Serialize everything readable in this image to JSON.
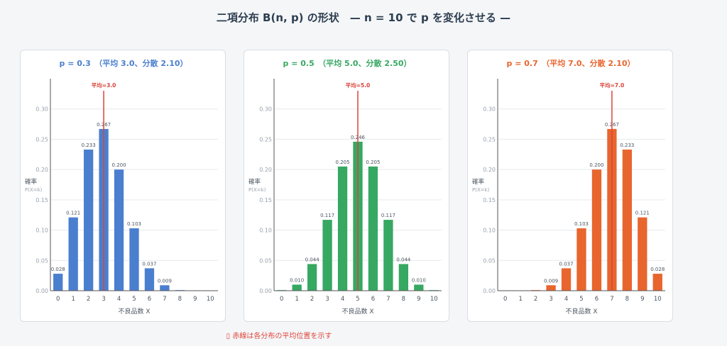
{
  "title": "二項分布 B(n, p) の形状　— n = 10 で p を変化させる —",
  "footnote": "▯ 赤線は各分布の平均位置を示す",
  "chart_data": [
    {
      "type": "bar",
      "title": "p = 0.3　（平均 3.0、分散 2.10）",
      "color": "#4a7fcf",
      "xlabel": "不良品数 X",
      "ylabel": "確率",
      "ylabel_sub": "P(X=k)",
      "categories": [
        "0",
        "1",
        "2",
        "3",
        "4",
        "5",
        "6",
        "7",
        "8",
        "9",
        "10"
      ],
      "values": [
        0.028,
        0.121,
        0.233,
        0.267,
        0.2,
        0.103,
        0.037,
        0.009,
        0.001,
        0.0,
        0.0
      ],
      "labels": [
        "0.028",
        "0.121",
        "0.233",
        "0.267",
        "0.200",
        "0.103",
        "0.037",
        "0.009",
        "",
        "",
        ""
      ],
      "yticks": [
        "0.00",
        "0.05",
        "0.10",
        "0.15",
        "0.20",
        "0.25",
        "0.30"
      ],
      "ylim": [
        0,
        0.35
      ],
      "mean": 3.0,
      "mean_label": "平均=3.0",
      "grid": true
    },
    {
      "type": "bar",
      "title": "p = 0.5　（平均 5.0、分散 2.50）",
      "color": "#36a862",
      "xlabel": "不良品数 X",
      "ylabel": "確率",
      "ylabel_sub": "P(X=k)",
      "categories": [
        "0",
        "1",
        "2",
        "3",
        "4",
        "5",
        "6",
        "7",
        "8",
        "9",
        "10"
      ],
      "values": [
        0.001,
        0.01,
        0.044,
        0.117,
        0.205,
        0.246,
        0.205,
        0.117,
        0.044,
        0.01,
        0.001
      ],
      "labels": [
        "",
        "0.010",
        "0.044",
        "0.117",
        "0.205",
        "0.246",
        "0.205",
        "0.117",
        "0.044",
        "0.010",
        ""
      ],
      "yticks": [
        "0.00",
        "0.05",
        "0.10",
        "0.15",
        "0.20",
        "0.25",
        "0.30"
      ],
      "ylim": [
        0,
        0.35
      ],
      "mean": 5.0,
      "mean_label": "平均=5.0",
      "grid": true
    },
    {
      "type": "bar",
      "title": "p = 0.7　（平均 7.0、分散 2.10）",
      "color": "#e8652e",
      "xlabel": "不良品数 X",
      "ylabel": "確率",
      "ylabel_sub": "P(X=k)",
      "categories": [
        "0",
        "1",
        "2",
        "3",
        "4",
        "5",
        "6",
        "7",
        "8",
        "9",
        "10"
      ],
      "values": [
        0.0,
        0.0,
        0.001,
        0.009,
        0.037,
        0.103,
        0.2,
        0.267,
        0.233,
        0.121,
        0.028
      ],
      "labels": [
        "",
        "",
        "",
        "0.009",
        "0.037",
        "0.103",
        "0.200",
        "0.267",
        "0.233",
        "0.121",
        "0.028"
      ],
      "yticks": [
        "0.00",
        "0.05",
        "0.10",
        "0.15",
        "0.20",
        "0.25",
        "0.30"
      ],
      "ylim": [
        0,
        0.35
      ],
      "mean": 7.0,
      "mean_label": "平均=7.0",
      "grid": true
    }
  ]
}
